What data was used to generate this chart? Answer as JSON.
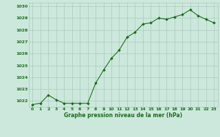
{
  "hours": [
    0,
    1,
    2,
    3,
    4,
    5,
    6,
    7,
    8,
    9,
    10,
    11,
    12,
    13,
    14,
    15,
    16,
    17,
    18,
    19,
    20,
    21,
    22,
    23
  ],
  "pressure": [
    1021.7,
    1021.8,
    1022.5,
    1022.1,
    1021.8,
    1021.8,
    1021.8,
    1021.8,
    1023.5,
    1024.6,
    1025.6,
    1026.3,
    1027.4,
    1027.8,
    1028.5,
    1028.6,
    1029.0,
    1028.9,
    1029.1,
    1029.3,
    1029.7,
    1029.2,
    1028.9,
    1028.6
  ],
  "line_color": "#1a6b1a",
  "marker_color": "#1a6b1a",
  "bg_color": "#cce8dc",
  "grid_color": "#aac8bc",
  "xlabel": "Graphe pression niveau de la mer (hPa)",
  "xlabel_color": "#1a6b1a",
  "tick_color": "#1a6b1a",
  "ylim_min": 1021.5,
  "ylim_max": 1030.3,
  "yticks": [
    1022,
    1023,
    1024,
    1025,
    1026,
    1027,
    1028,
    1029,
    1030
  ],
  "figwidth": 3.2,
  "figheight": 2.0,
  "dpi": 100
}
